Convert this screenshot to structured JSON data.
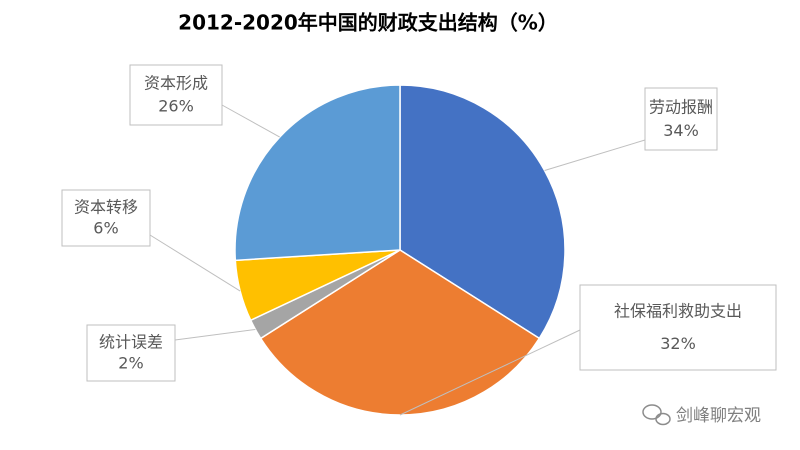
{
  "chart_data": {
    "type": "pie",
    "title": "2012-2020年中国的财政支出结构（%）",
    "categories": [
      "劳动报酬",
      "社保福利救助支出",
      "统计误差",
      "资本转移",
      "资本形成"
    ],
    "values": [
      34,
      32,
      2,
      6,
      26
    ],
    "value_labels": [
      "34%",
      "32%",
      "2%",
      "6%",
      "26%"
    ],
    "colors": [
      "#4472c4",
      "#ed7d31",
      "#a5a5a5",
      "#ffc000",
      "#5b9bd5"
    ],
    "watermark": "剑峰聊宏观"
  }
}
